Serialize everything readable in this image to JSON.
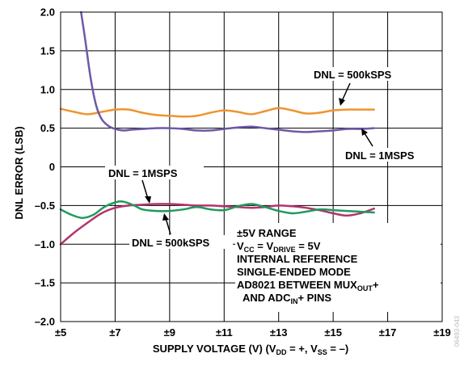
{
  "chart_data": {
    "type": "line",
    "xlabel": "SUPPLY VOLTAGE (V) (V_DD = +, V_SS = –)",
    "ylabel": "DNL ERROR (LSB)",
    "xlim": [
      5,
      19
    ],
    "ylim": [
      -2.0,
      2.0
    ],
    "x_ticks": [
      "±5",
      "±7",
      "±9",
      "±11",
      "±13",
      "±15",
      "±17",
      "±19"
    ],
    "y_ticks": [
      "2.0",
      "1.5",
      "1.0",
      "0.5",
      "0",
      "–0.5",
      "–1.0",
      "–1.5",
      "–2.0"
    ],
    "grid": true,
    "series": [
      {
        "name": "DNL = 500kSPS",
        "color": "#f0932f",
        "group": "positive",
        "x": [
          5,
          5.5,
          6,
          6.5,
          7,
          7.5,
          8,
          8.5,
          9,
          9.5,
          10,
          10.5,
          11,
          11.5,
          12,
          12.5,
          13,
          13.5,
          14,
          14.5,
          15,
          15.5,
          16,
          16.5
        ],
        "y": [
          0.75,
          0.71,
          0.68,
          0.71,
          0.74,
          0.74,
          0.7,
          0.67,
          0.66,
          0.65,
          0.66,
          0.7,
          0.73,
          0.71,
          0.68,
          0.72,
          0.76,
          0.73,
          0.69,
          0.7,
          0.73,
          0.74,
          0.74,
          0.74
        ]
      },
      {
        "name": "DNL = 1MSPS",
        "color": "#6e59a8",
        "group": "positive",
        "x": [
          5.75,
          5.9,
          6.1,
          6.3,
          6.5,
          6.75,
          7,
          7.3,
          7.6,
          8,
          8.5,
          9,
          9.5,
          10,
          10.5,
          11,
          11.5,
          12,
          12.5,
          13,
          13.5,
          14,
          14.5,
          15,
          15.5,
          16,
          16.5
        ],
        "y": [
          2.0,
          1.65,
          1.15,
          0.8,
          0.62,
          0.53,
          0.49,
          0.47,
          0.48,
          0.49,
          0.5,
          0.5,
          0.49,
          0.47,
          0.47,
          0.49,
          0.51,
          0.52,
          0.5,
          0.48,
          0.46,
          0.45,
          0.46,
          0.47,
          0.49,
          0.49,
          0.5
        ]
      },
      {
        "name": "DNL = 1MSPS",
        "color": "#b5336e",
        "group": "negative",
        "x": [
          5,
          5.5,
          6,
          6.5,
          7,
          7.5,
          8,
          8.5,
          9,
          9.5,
          10,
          10.5,
          11,
          11.5,
          12,
          12.5,
          13,
          13.5,
          14,
          14.5,
          15,
          15.5,
          16,
          16.5
        ],
        "y": [
          -1.0,
          -0.85,
          -0.72,
          -0.6,
          -0.53,
          -0.5,
          -0.49,
          -0.48,
          -0.48,
          -0.49,
          -0.5,
          -0.5,
          -0.51,
          -0.52,
          -0.53,
          -0.52,
          -0.5,
          -0.51,
          -0.53,
          -0.56,
          -0.6,
          -0.63,
          -0.6,
          -0.54
        ]
      },
      {
        "name": "DNL = 500kSPS",
        "color": "#1f9a5c",
        "group": "negative",
        "x": [
          5,
          5.4,
          5.8,
          6.2,
          6.6,
          7,
          7.3,
          7.7,
          8,
          8.5,
          9,
          9.5,
          10,
          10.5,
          11,
          11.5,
          12,
          12.5,
          13,
          13.5,
          14,
          14.5,
          15,
          15.5,
          16,
          16.5
        ],
        "y": [
          -0.55,
          -0.62,
          -0.66,
          -0.62,
          -0.52,
          -0.46,
          -0.45,
          -0.5,
          -0.55,
          -0.57,
          -0.57,
          -0.55,
          -0.52,
          -0.55,
          -0.56,
          -0.51,
          -0.48,
          -0.52,
          -0.57,
          -0.6,
          -0.58,
          -0.55,
          -0.56,
          -0.57,
          -0.58,
          -0.59
        ]
      }
    ],
    "labels": {
      "pos_500k": "DNL = 500kSPS",
      "pos_1m": "DNL = 1MSPS",
      "neg_1m": "DNL = 1MSPS",
      "neg_500k": "DNL = 500kSPS"
    },
    "conditions": [
      "±5V RANGE",
      "V_CC = V_DRIVE = 5V",
      "INTERNAL REFERENCE",
      "SINGLE-ENDED MODE",
      "AD8021 BETWEEN MUX_OUT+",
      "AND ADC_IN+ PINS"
    ],
    "figure_id": "06493-043"
  }
}
